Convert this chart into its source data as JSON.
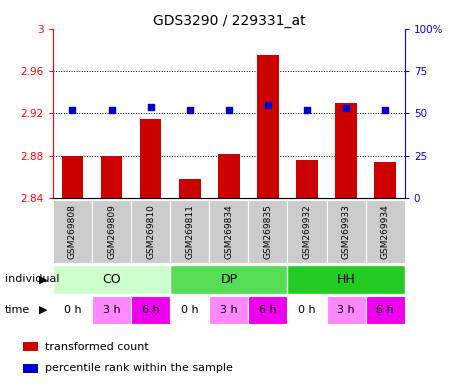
{
  "title": "GDS3290 / 229331_at",
  "samples": [
    "GSM269808",
    "GSM269809",
    "GSM269810",
    "GSM269811",
    "GSM269834",
    "GSM269835",
    "GSM269932",
    "GSM269933",
    "GSM269934"
  ],
  "bar_values": [
    2.88,
    2.88,
    2.915,
    2.858,
    2.881,
    2.975,
    2.876,
    2.93,
    2.874
  ],
  "percentile_values": [
    52,
    52,
    54,
    52,
    52,
    55,
    52,
    53,
    52
  ],
  "ymin": 2.84,
  "ymax": 3.0,
  "yticks": [
    2.84,
    2.88,
    2.92,
    2.96,
    3.0
  ],
  "ytick_labels": [
    "2.84",
    "2.88",
    "2.92",
    "2.96",
    "3"
  ],
  "y2min": 0,
  "y2max": 100,
  "y2ticks": [
    0,
    25,
    50,
    75,
    100
  ],
  "y2tick_labels": [
    "0",
    "25",
    "50",
    "75",
    "100%"
  ],
  "bar_color": "#cc0000",
  "percentile_color": "#0000cc",
  "individuals": [
    {
      "label": "CO",
      "start": 0,
      "end": 3,
      "color": "#ccffcc"
    },
    {
      "label": "DP",
      "start": 3,
      "end": 6,
      "color": "#55dd55"
    },
    {
      "label": "HH",
      "start": 6,
      "end": 9,
      "color": "#22cc22"
    }
  ],
  "time_labels": [
    "0 h",
    "3 h",
    "6 h",
    "0 h",
    "3 h",
    "6 h",
    "0 h",
    "3 h",
    "6 h"
  ],
  "time_colors": [
    "#ffffff",
    "#ff88ff",
    "#ee00ee",
    "#ffffff",
    "#ff88ff",
    "#ee00ee",
    "#ffffff",
    "#ff88ff",
    "#ee00ee"
  ],
  "sample_bg": "#cccccc",
  "legend_bar_label": "transformed count",
  "legend_pct_label": "percentile rank within the sample",
  "ind_row_label": "individual",
  "time_row_label": "time",
  "grid_dotted_at": [
    2.88,
    2.92,
    2.96
  ],
  "title_fontsize": 10,
  "tick_fontsize": 7.5,
  "sample_fontsize": 6.5,
  "row_label_fontsize": 8,
  "ind_fontsize": 9,
  "time_fontsize": 8,
  "legend_fontsize": 8
}
